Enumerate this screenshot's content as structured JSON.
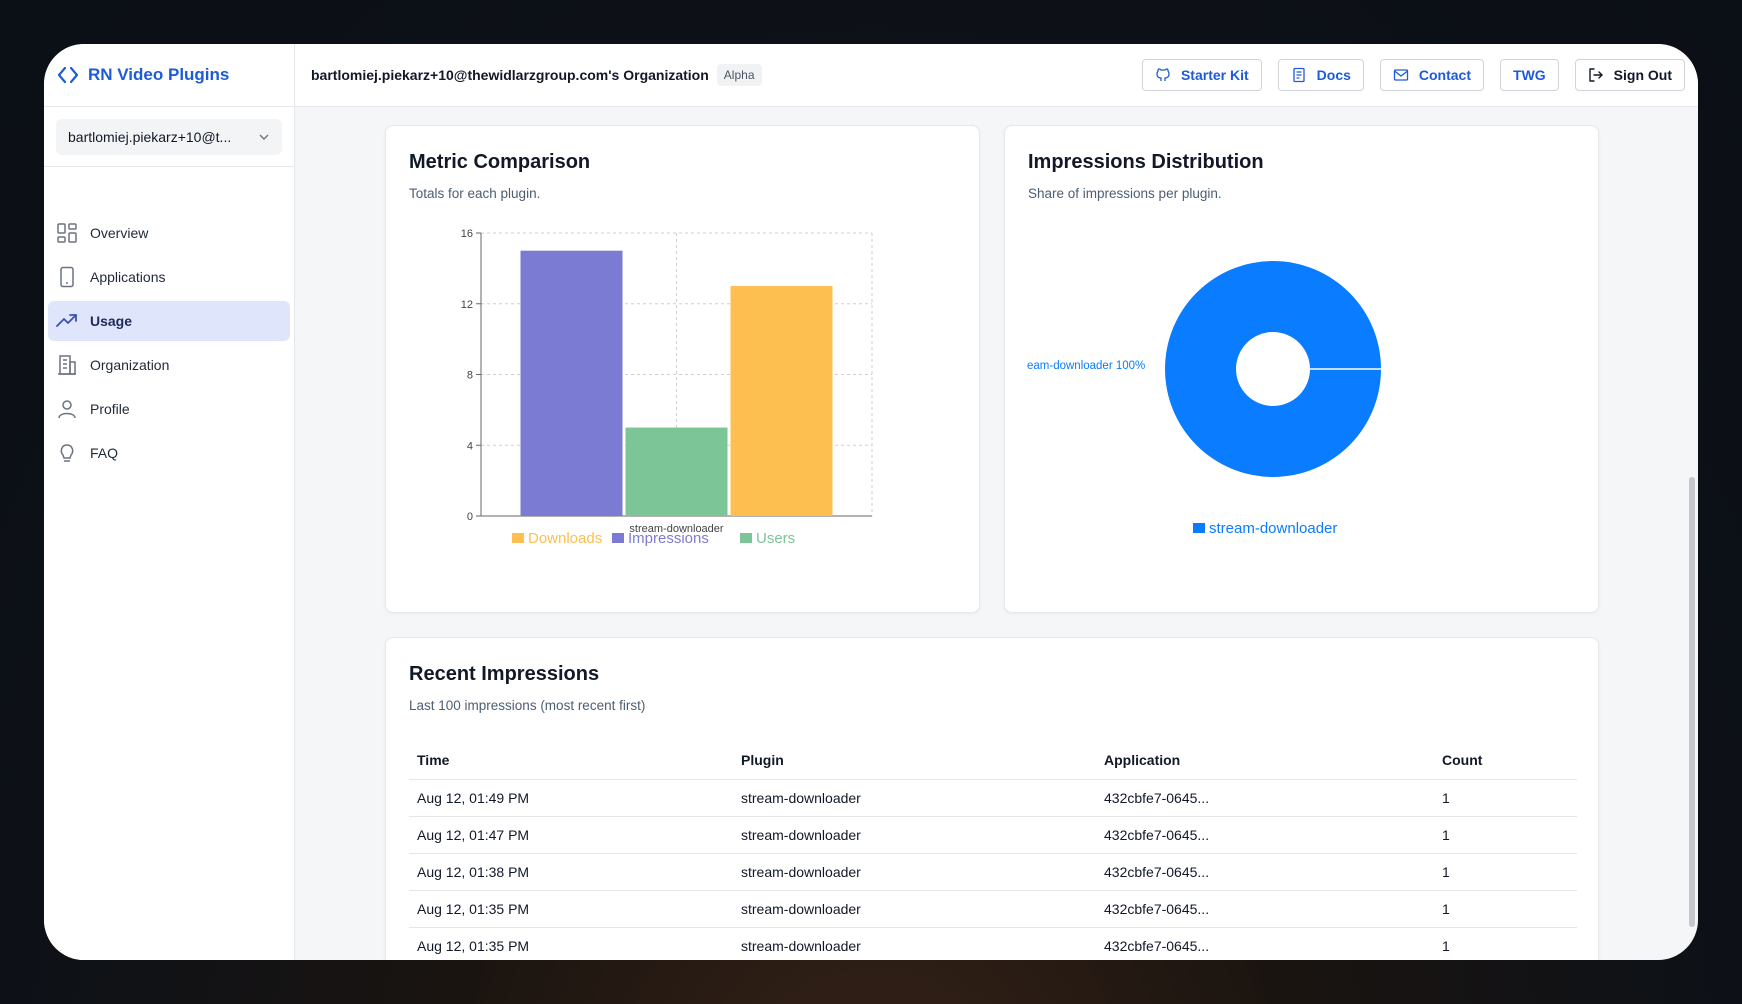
{
  "app": {
    "title": "RN Video Plugins"
  },
  "sidebar": {
    "org_select": "bartlomiej.piekarz+10@t...",
    "items": [
      {
        "label": "Overview",
        "icon": "grid-icon"
      },
      {
        "label": "Applications",
        "icon": "phone-icon"
      },
      {
        "label": "Usage",
        "icon": "trend-icon",
        "active": true
      },
      {
        "label": "Organization",
        "icon": "building-icon"
      },
      {
        "label": "Profile",
        "icon": "user-icon"
      },
      {
        "label": "FAQ",
        "icon": "lightbulb-icon"
      }
    ]
  },
  "header": {
    "org_name": "bartlomiej.piekarz+10@thewidlarzgroup.com's Organization",
    "badge": "Alpha",
    "buttons": {
      "starter_kit": "Starter Kit",
      "docs": "Docs",
      "contact": "Contact",
      "twg": "TWG",
      "sign_out": "Sign Out"
    }
  },
  "metric_card": {
    "title": "Metric Comparison",
    "subtitle": "Totals for each plugin."
  },
  "dist_card": {
    "title": "Impressions Distribution",
    "subtitle": "Share of impressions per plugin."
  },
  "chart_data": [
    {
      "type": "bar",
      "categories": [
        "stream-downloader"
      ],
      "series": [
        {
          "name": "Impressions",
          "values": [
            15
          ],
          "color": "#7c7bd3"
        },
        {
          "name": "Users",
          "values": [
            5
          ],
          "color": "#7cc597"
        },
        {
          "name": "Downloads",
          "values": [
            13
          ],
          "color": "#fdbf50"
        }
      ],
      "legend": [
        "Downloads",
        "Impressions",
        "Users"
      ],
      "legend_colors": [
        "#fdbf50",
        "#7c7bd3",
        "#7cc597"
      ],
      "yticks": [
        "0",
        "4",
        "8",
        "12",
        "16"
      ],
      "ylim": [
        0,
        16
      ],
      "grid": true,
      "legend_position": "bottom"
    },
    {
      "type": "pie",
      "labels": [
        "stream-downloader"
      ],
      "values": [
        100
      ],
      "slice_label": "eam-downloader 100%",
      "color": "#0a7cff",
      "legend_position": "bottom"
    }
  ],
  "recent": {
    "title": "Recent Impressions",
    "subtitle": "Last 100 impressions (most recent first)",
    "columns": [
      "Time",
      "Plugin",
      "Application",
      "Count"
    ],
    "rows": [
      [
        "Aug 12, 01:49 PM",
        "stream-downloader",
        "432cbfe7-0645...",
        "1"
      ],
      [
        "Aug 12, 01:47 PM",
        "stream-downloader",
        "432cbfe7-0645...",
        "1"
      ],
      [
        "Aug 12, 01:38 PM",
        "stream-downloader",
        "432cbfe7-0645...",
        "1"
      ],
      [
        "Aug 12, 01:35 PM",
        "stream-downloader",
        "432cbfe7-0645...",
        "1"
      ],
      [
        "Aug 12, 01:35 PM",
        "stream-downloader",
        "432cbfe7-0645...",
        "1"
      ]
    ]
  }
}
